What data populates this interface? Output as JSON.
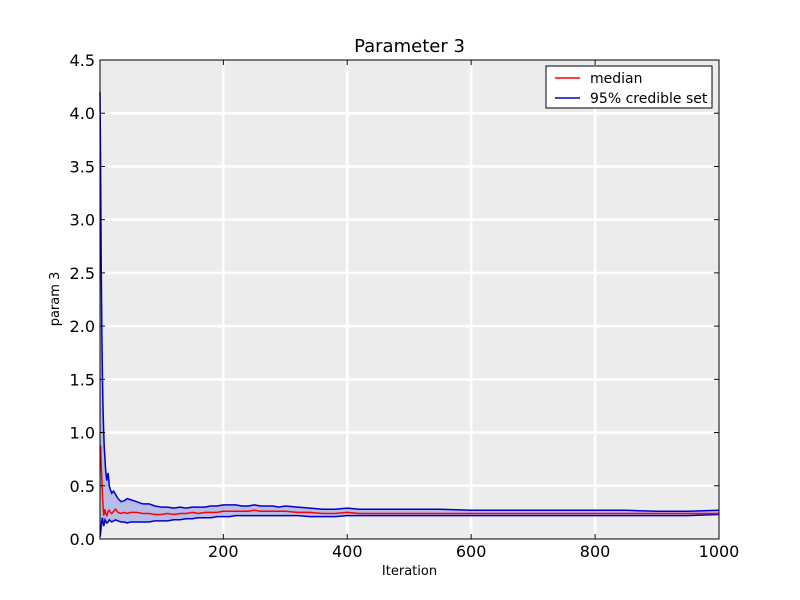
{
  "chart_data": {
    "type": "line",
    "title": "Parameter 3",
    "xlabel": "Iteration",
    "ylabel": "param 3",
    "xlim": [
      1,
      1000
    ],
    "ylim": [
      0,
      4.5
    ],
    "x_ticks": [
      200,
      400,
      600,
      800,
      1000
    ],
    "x_tick_labels": [
      "200",
      "400",
      "600",
      "800",
      "1000"
    ],
    "y_ticks": [
      0,
      0.5,
      1.0,
      1.5,
      2.0,
      2.5,
      3.0,
      3.5,
      4.0,
      4.5
    ],
    "y_tick_labels": [
      "0.0",
      "0.5",
      "1.0",
      "1.5",
      "2.0",
      "2.5",
      "3.0",
      "3.5",
      "4.0",
      "4.5"
    ],
    "grid": true,
    "legend_position": "top-right",
    "band_fill_color": "#b8bde8",
    "x": [
      1,
      2,
      3,
      4,
      5,
      6,
      7,
      8,
      9,
      10,
      12,
      14,
      16,
      18,
      20,
      23,
      26,
      30,
      35,
      40,
      45,
      50,
      60,
      70,
      80,
      90,
      100,
      110,
      120,
      130,
      140,
      150,
      160,
      170,
      180,
      190,
      200,
      210,
      220,
      230,
      240,
      250,
      260,
      270,
      280,
      290,
      300,
      320,
      340,
      360,
      380,
      400,
      420,
      450,
      500,
      550,
      600,
      650,
      700,
      750,
      800,
      850,
      900,
      950,
      1000
    ],
    "series": [
      {
        "name": "median",
        "color": "#ff0000",
        "values": [
          0.85,
          0.88,
          0.7,
          0.55,
          0.4,
          0.3,
          0.22,
          0.25,
          0.28,
          0.24,
          0.22,
          0.26,
          0.27,
          0.25,
          0.24,
          0.26,
          0.28,
          0.25,
          0.24,
          0.25,
          0.24,
          0.25,
          0.25,
          0.24,
          0.24,
          0.23,
          0.23,
          0.24,
          0.23,
          0.24,
          0.24,
          0.25,
          0.24,
          0.25,
          0.25,
          0.25,
          0.26,
          0.26,
          0.26,
          0.26,
          0.26,
          0.27,
          0.26,
          0.26,
          0.26,
          0.26,
          0.26,
          0.25,
          0.25,
          0.24,
          0.24,
          0.25,
          0.24,
          0.24,
          0.24,
          0.24,
          0.24,
          0.24,
          0.24,
          0.24,
          0.24,
          0.24,
          0.24,
          0.24,
          0.24
        ]
      },
      {
        "name": "95% credible set",
        "color": "#0000cc",
        "upper": [
          4.2,
          3.5,
          2.6,
          1.9,
          1.5,
          1.2,
          1.0,
          0.85,
          0.75,
          0.65,
          0.55,
          0.62,
          0.5,
          0.46,
          0.43,
          0.45,
          0.42,
          0.38,
          0.35,
          0.36,
          0.38,
          0.37,
          0.35,
          0.33,
          0.33,
          0.31,
          0.3,
          0.3,
          0.29,
          0.3,
          0.29,
          0.3,
          0.3,
          0.3,
          0.31,
          0.31,
          0.32,
          0.32,
          0.32,
          0.31,
          0.31,
          0.32,
          0.31,
          0.31,
          0.31,
          0.3,
          0.31,
          0.3,
          0.29,
          0.28,
          0.28,
          0.29,
          0.28,
          0.28,
          0.28,
          0.28,
          0.27,
          0.27,
          0.27,
          0.27,
          0.27,
          0.27,
          0.26,
          0.26,
          0.27
        ],
        "lower": [
          0.02,
          0.05,
          0.12,
          0.18,
          0.2,
          0.15,
          0.12,
          0.14,
          0.18,
          0.17,
          0.15,
          0.16,
          0.18,
          0.17,
          0.16,
          0.17,
          0.18,
          0.17,
          0.16,
          0.16,
          0.15,
          0.16,
          0.16,
          0.16,
          0.16,
          0.17,
          0.17,
          0.17,
          0.18,
          0.18,
          0.19,
          0.19,
          0.2,
          0.2,
          0.2,
          0.21,
          0.21,
          0.21,
          0.22,
          0.22,
          0.22,
          0.22,
          0.22,
          0.22,
          0.22,
          0.22,
          0.22,
          0.22,
          0.21,
          0.21,
          0.21,
          0.22,
          0.22,
          0.22,
          0.22,
          0.22,
          0.22,
          0.22,
          0.22,
          0.22,
          0.22,
          0.22,
          0.22,
          0.22,
          0.23
        ]
      }
    ]
  }
}
